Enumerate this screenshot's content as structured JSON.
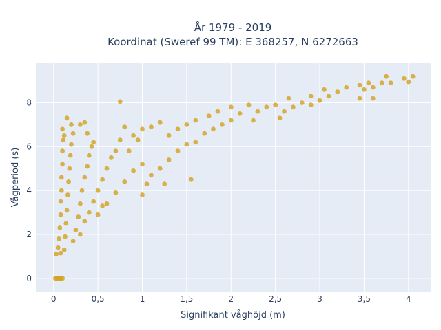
{
  "chart_data": {
    "type": "scatter",
    "title_line1": "År 1979 - 2019",
    "title_line2": "Koordinat (Sweref 99 TM): E 368257, N 6272663",
    "xlabel": "Signifikant våghöjd (m)",
    "ylabel": "Vågperiod (s)",
    "xlim": [
      -0.2,
      4.25
    ],
    "ylim": [
      -0.6,
      9.8
    ],
    "x_ticks": [
      {
        "value": 0,
        "label": "0"
      },
      {
        "value": 0.5,
        "label": "0,5"
      },
      {
        "value": 1,
        "label": "1"
      },
      {
        "value": 1.5,
        "label": "1,5"
      },
      {
        "value": 2,
        "label": "2"
      },
      {
        "value": 2.5,
        "label": "2,5"
      },
      {
        "value": 3,
        "label": "3"
      },
      {
        "value": 3.5,
        "label": "3,5"
      },
      {
        "value": 4,
        "label": "4"
      }
    ],
    "y_ticks": [
      {
        "value": 0,
        "label": "0"
      },
      {
        "value": 2,
        "label": "2"
      },
      {
        "value": 4,
        "label": "4"
      },
      {
        "value": 6,
        "label": "6"
      },
      {
        "value": 8,
        "label": "8"
      }
    ],
    "grid": true,
    "background_color": "#e5ecf6",
    "marker_color": "#d4a11e",
    "series": [
      {
        "points": [
          [
            0.05,
            1.4
          ],
          [
            0.06,
            1.8
          ],
          [
            0.07,
            2.3
          ],
          [
            0.08,
            2.9
          ],
          [
            0.08,
            3.5
          ],
          [
            0.09,
            4.0
          ],
          [
            0.09,
            4.6
          ],
          [
            0.1,
            5.2
          ],
          [
            0.1,
            5.8
          ],
          [
            0.11,
            6.3
          ],
          [
            0.1,
            6.8
          ],
          [
            0.12,
            6.5
          ],
          [
            0.12,
            1.3
          ],
          [
            0.13,
            1.9
          ],
          [
            0.14,
            2.5
          ],
          [
            0.15,
            3.1
          ],
          [
            0.16,
            3.8
          ],
          [
            0.17,
            4.4
          ],
          [
            0.18,
            5.0
          ],
          [
            0.19,
            5.6
          ],
          [
            0.2,
            6.1
          ],
          [
            0.22,
            6.6
          ],
          [
            0.15,
            7.3
          ],
          [
            0.2,
            7.0
          ],
          [
            0.3,
            7.0
          ],
          [
            0.38,
            6.6
          ],
          [
            0.35,
            7.1
          ],
          [
            0.22,
            1.7
          ],
          [
            0.25,
            2.2
          ],
          [
            0.28,
            2.8
          ],
          [
            0.3,
            3.4
          ],
          [
            0.32,
            4.0
          ],
          [
            0.35,
            4.6
          ],
          [
            0.38,
            5.1
          ],
          [
            0.4,
            5.6
          ],
          [
            0.43,
            6.0
          ],
          [
            0.45,
            6.2
          ],
          [
            0.3,
            2.0
          ],
          [
            0.35,
            2.6
          ],
          [
            0.4,
            3.0
          ],
          [
            0.45,
            3.5
          ],
          [
            0.5,
            4.0
          ],
          [
            0.55,
            4.5
          ],
          [
            0.6,
            5.0
          ],
          [
            0.65,
            5.5
          ],
          [
            0.7,
            5.8
          ],
          [
            0.75,
            6.3
          ],
          [
            0.5,
            2.9
          ],
          [
            0.55,
            3.3
          ],
          [
            0.6,
            3.4
          ],
          [
            0.7,
            3.9
          ],
          [
            0.8,
            4.4
          ],
          [
            0.9,
            4.9
          ],
          [
            1.0,
            5.2
          ],
          [
            0.85,
            5.8
          ],
          [
            0.95,
            6.3
          ],
          [
            1.0,
            6.8
          ],
          [
            0.75,
            8.05
          ],
          [
            0.8,
            6.9
          ],
          [
            0.9,
            6.5
          ],
          [
            1.1,
            6.9
          ],
          [
            1.2,
            7.1
          ],
          [
            1.0,
            3.8
          ],
          [
            1.05,
            4.3
          ],
          [
            1.1,
            4.7
          ],
          [
            1.2,
            5.0
          ],
          [
            1.3,
            5.4
          ],
          [
            1.4,
            5.8
          ],
          [
            1.5,
            6.1
          ],
          [
            1.55,
            4.5
          ],
          [
            1.25,
            4.3
          ],
          [
            1.3,
            6.5
          ],
          [
            1.4,
            6.8
          ],
          [
            1.5,
            7.0
          ],
          [
            1.6,
            7.2
          ],
          [
            1.6,
            6.2
          ],
          [
            1.7,
            6.6
          ],
          [
            1.8,
            6.8
          ],
          [
            1.9,
            7.0
          ],
          [
            2.0,
            7.2
          ],
          [
            1.75,
            7.4
          ],
          [
            1.85,
            7.6
          ],
          [
            2.0,
            7.8
          ],
          [
            2.1,
            7.5
          ],
          [
            2.2,
            7.9
          ],
          [
            2.25,
            7.2
          ],
          [
            2.3,
            7.6
          ],
          [
            2.4,
            7.8
          ],
          [
            2.5,
            7.9
          ],
          [
            2.55,
            7.3
          ],
          [
            2.6,
            7.6
          ],
          [
            2.7,
            7.8
          ],
          [
            2.8,
            8.0
          ],
          [
            2.65,
            8.2
          ],
          [
            2.9,
            7.9
          ],
          [
            3.0,
            8.1
          ],
          [
            3.1,
            8.3
          ],
          [
            3.2,
            8.5
          ],
          [
            3.3,
            8.7
          ],
          [
            3.05,
            8.6
          ],
          [
            2.9,
            8.3
          ],
          [
            3.45,
            8.8
          ],
          [
            3.5,
            8.6
          ],
          [
            3.55,
            8.9
          ],
          [
            3.6,
            8.7
          ],
          [
            3.7,
            8.9
          ],
          [
            3.75,
            9.2
          ],
          [
            3.8,
            8.9
          ],
          [
            3.45,
            8.2
          ],
          [
            3.6,
            8.2
          ],
          [
            3.95,
            9.1
          ],
          [
            4.0,
            8.95
          ],
          [
            4.05,
            9.2
          ],
          [
            0.02,
            0.0
          ],
          [
            0.04,
            0.0
          ],
          [
            0.06,
            0.0
          ],
          [
            0.08,
            0.0
          ],
          [
            0.1,
            0.0
          ],
          [
            0.03,
            1.1
          ],
          [
            0.08,
            1.15
          ]
        ]
      }
    ]
  }
}
